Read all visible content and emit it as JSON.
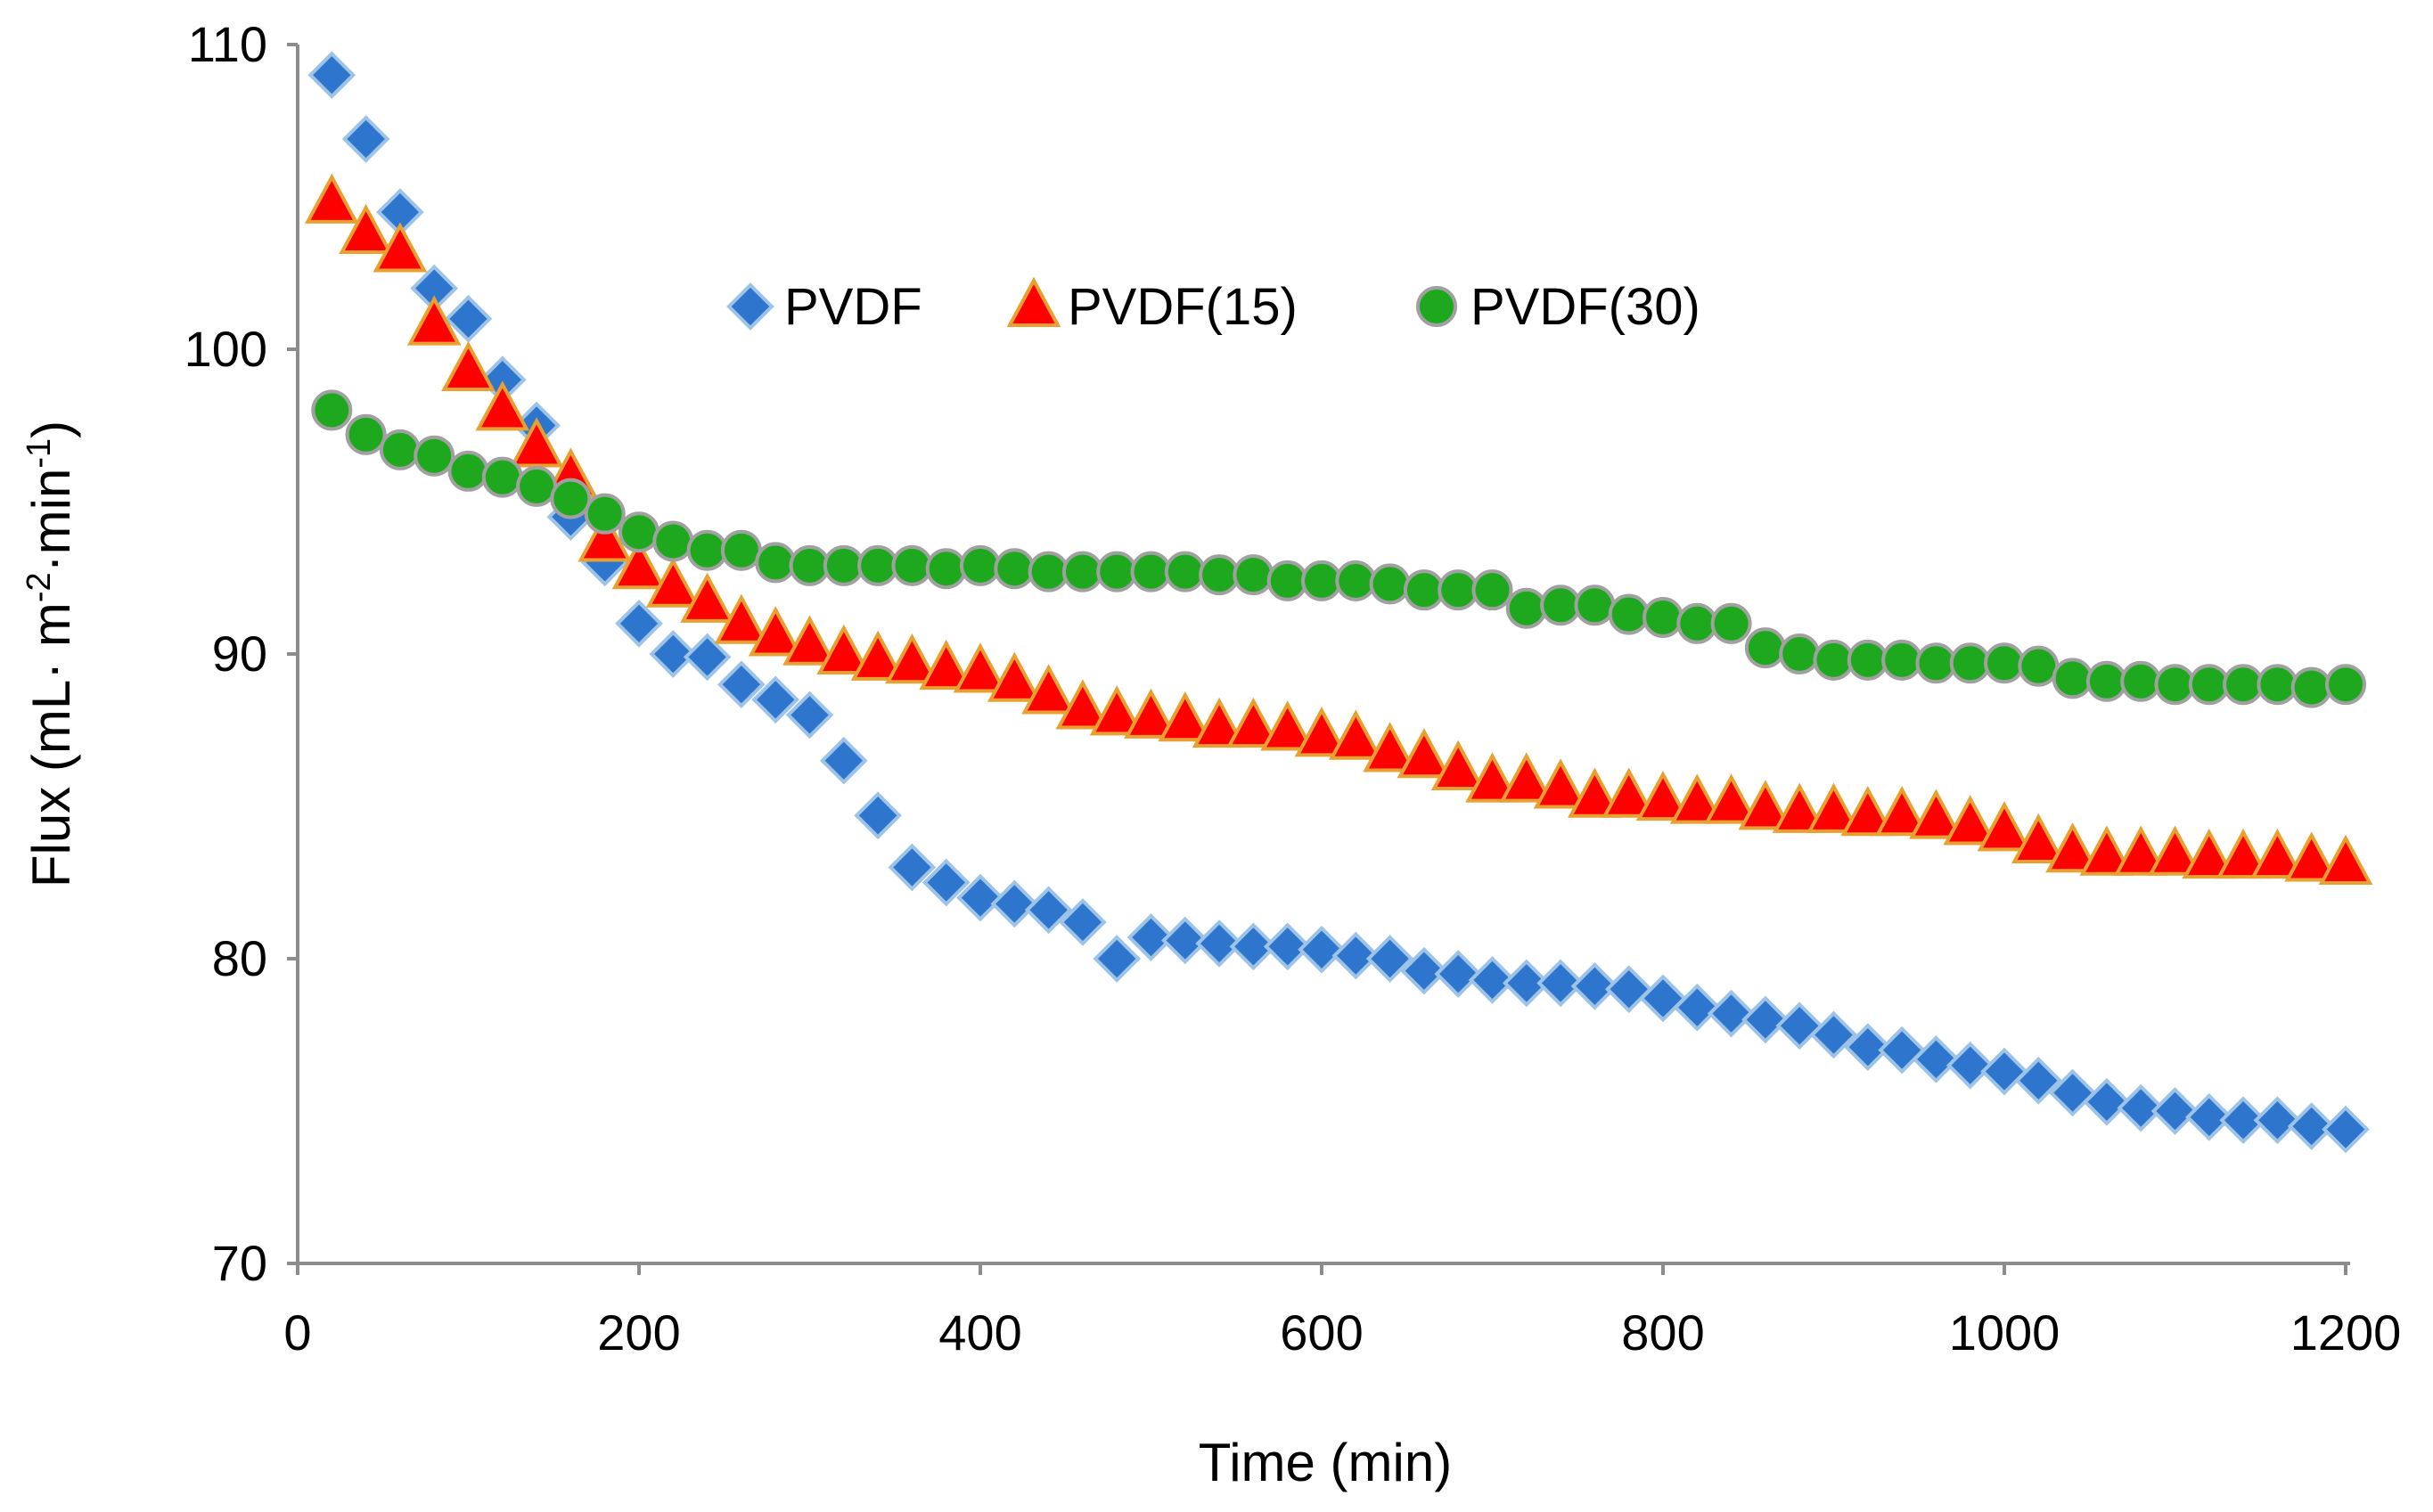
{
  "chart_data": {
    "type": "scatter",
    "title": "",
    "xlabel": "Time (min)",
    "ylabel_parts": {
      "base": "Flux (mL· m",
      "exp1": "-2",
      "mid": "·min",
      "exp2": "-1",
      "end": ")"
    },
    "xlim": [
      0,
      1200
    ],
    "ylim": [
      70,
      110
    ],
    "xticks": [
      "0",
      "200",
      "400",
      "600",
      "800",
      "1000",
      "1200"
    ],
    "yticks": [
      "70",
      "80",
      "90",
      "100",
      "110"
    ],
    "grid": false,
    "legend_position": "top-center",
    "x": [
      20,
      40,
      60,
      80,
      100,
      120,
      140,
      160,
      180,
      200,
      220,
      240,
      260,
      280,
      300,
      320,
      340,
      360,
      380,
      400,
      420,
      440,
      460,
      480,
      500,
      520,
      540,
      560,
      580,
      600,
      620,
      640,
      660,
      680,
      700,
      720,
      740,
      760,
      780,
      800,
      820,
      840,
      860,
      880,
      900,
      920,
      940,
      960,
      980,
      1000,
      1020,
      1040,
      1060,
      1080,
      1100,
      1120,
      1140,
      1160,
      1180,
      1200
    ],
    "series": [
      {
        "name": "PVDF",
        "marker": "diamond",
        "color": "#2E75CE",
        "edge": "#9DC3E6",
        "values": [
          109.0,
          106.9,
          104.5,
          102.0,
          101.0,
          99.0,
          97.5,
          94.5,
          93.0,
          91.0,
          90.0,
          89.9,
          89.0,
          88.5,
          88.0,
          86.5,
          84.7,
          83.0,
          82.5,
          82.0,
          81.8,
          81.6,
          81.2,
          80.0,
          80.7,
          80.6,
          80.5,
          80.4,
          80.4,
          80.3,
          80.1,
          80.0,
          79.6,
          79.5,
          79.3,
          79.2,
          79.2,
          79.1,
          79.0,
          78.7,
          78.4,
          78.2,
          78.0,
          77.8,
          77.5,
          77.1,
          77.0,
          76.7,
          76.5,
          76.3,
          76.0,
          75.6,
          75.3,
          75.1,
          75.0,
          74.8,
          74.7,
          74.7,
          74.5,
          74.4
        ]
      },
      {
        "name": "PVDF(15)",
        "marker": "triangle",
        "color": "#FF0000",
        "edge": "#E8A030",
        "values": [
          104.8,
          103.8,
          103.2,
          100.8,
          99.3,
          98.0,
          96.8,
          95.8,
          93.7,
          92.8,
          92.2,
          91.7,
          91.0,
          90.6,
          90.3,
          90.0,
          89.8,
          89.7,
          89.5,
          89.4,
          89.1,
          88.7,
          88.2,
          88.0,
          87.9,
          87.8,
          87.6,
          87.6,
          87.5,
          87.3,
          87.2,
          86.8,
          86.6,
          86.2,
          85.8,
          85.8,
          85.6,
          85.3,
          85.3,
          85.2,
          85.1,
          85.1,
          84.9,
          84.8,
          84.8,
          84.7,
          84.7,
          84.6,
          84.4,
          84.2,
          83.8,
          83.5,
          83.4,
          83.4,
          83.4,
          83.3,
          83.3,
          83.3,
          83.2,
          83.1
        ]
      },
      {
        "name": "PVDF(30)",
        "marker": "circle",
        "color": "#1EA81E",
        "edge": "#A0A0A0",
        "values": [
          98.0,
          97.2,
          96.7,
          96.5,
          96.0,
          95.8,
          95.5,
          95.1,
          94.6,
          94.0,
          93.7,
          93.4,
          93.4,
          93.0,
          92.9,
          92.9,
          92.9,
          92.9,
          92.8,
          92.9,
          92.8,
          92.7,
          92.7,
          92.7,
          92.7,
          92.7,
          92.6,
          92.6,
          92.4,
          92.4,
          92.4,
          92.3,
          92.1,
          92.1,
          92.1,
          91.5,
          91.6,
          91.6,
          91.3,
          91.2,
          91.0,
          91.0,
          90.2,
          90.0,
          89.8,
          89.8,
          89.8,
          89.7,
          89.7,
          89.7,
          89.6,
          89.2,
          89.1,
          89.1,
          89.0,
          89.0,
          89.0,
          89.0,
          88.9,
          89.0
        ]
      }
    ]
  }
}
